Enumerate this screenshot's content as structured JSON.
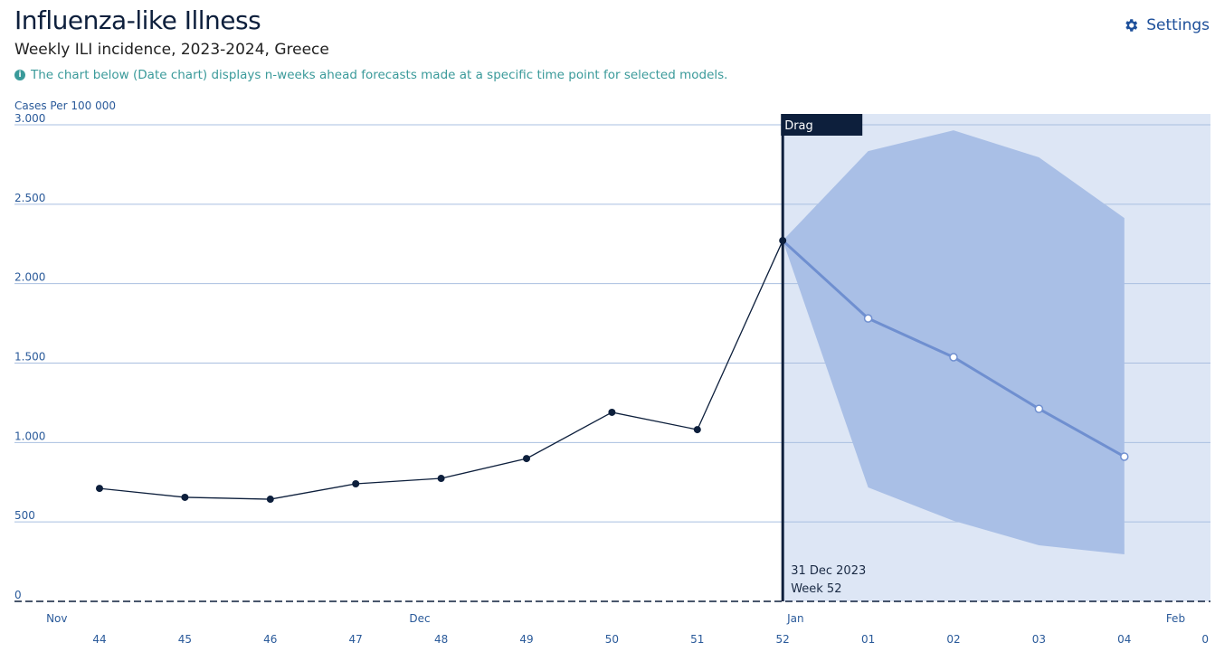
{
  "header": {
    "title": "Influenza-like Illness",
    "subtitle": "Weekly ILI incidence, 2023-2024, Greece",
    "info": "The chart below (Date chart) displays n-weeks ahead forecasts made at a specific time point for selected models.",
    "settings_label": "Settings"
  },
  "chart_data": {
    "type": "line",
    "ylabel": "Cases Per 100 000",
    "ylim": [
      0,
      3000
    ],
    "yticks": [
      0,
      500,
      1000,
      1500,
      2000,
      2500,
      3000
    ],
    "ytick_labels": [
      "0",
      "500",
      "1.000",
      "1.500",
      "2.000",
      "2.500",
      "3.000"
    ],
    "x_weeks": [
      "44",
      "45",
      "46",
      "47",
      "48",
      "49",
      "50",
      "51",
      "52",
      "01",
      "02",
      "03",
      "04",
      "0"
    ],
    "month_labels": [
      {
        "label": "Nov",
        "week_index": -0.5
      },
      {
        "label": "Dec",
        "week_index": 3.75
      },
      {
        "label": "Jan",
        "week_index": 8.15
      },
      {
        "label": "Feb",
        "week_index": 12.6
      }
    ],
    "observed": {
      "week_index": [
        0,
        1,
        2,
        3,
        4,
        5,
        6,
        7,
        8
      ],
      "values": [
        711,
        655,
        643,
        740,
        774,
        899,
        1190,
        1081,
        2271
      ]
    },
    "forecast": {
      "week_index": [
        8,
        9,
        10,
        11,
        12
      ],
      "values": [
        2271,
        1781,
        1537,
        1212,
        911
      ],
      "upper": [
        2271,
        2834,
        2965,
        2795,
        2413
      ],
      "lower": [
        2271,
        717,
        507,
        353,
        296
      ]
    },
    "drag_label": "Drag",
    "marker_date": "31 Dec 2023",
    "marker_week": "Week 52",
    "marker_week_index": 8,
    "colors": {
      "observed": "#0d1f3c",
      "forecast": "#6f8fd0",
      "band": "#a9bfe6",
      "region": "#dde6f5",
      "grid": "#a9bfe0",
      "axis_text": "#2a5a9a"
    }
  }
}
